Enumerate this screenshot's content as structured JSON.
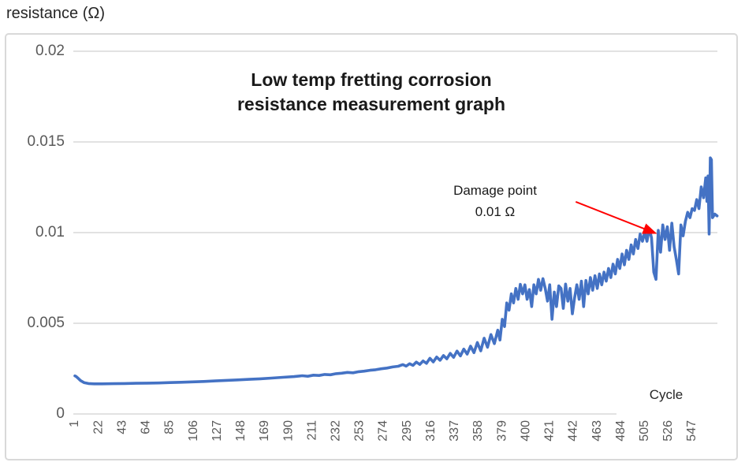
{
  "page": {
    "y_axis_title": "resistance (Ω)"
  },
  "chart_data": {
    "type": "line",
    "title": "Low temp fretting corrosion\nresistance measurement graph",
    "xlabel": "Cycle",
    "ylabel": "resistance (Ω)",
    "ylim": [
      0,
      0.02
    ],
    "y_ticks": [
      0,
      0.005,
      0.01,
      0.015,
      0.02
    ],
    "y_tick_labels": [
      "0",
      "0.005",
      "0.01",
      "0.015",
      "0.02"
    ],
    "x_ticks": [
      1,
      22,
      43,
      64,
      85,
      106,
      127,
      148,
      169,
      190,
      211,
      232,
      253,
      274,
      295,
      316,
      337,
      358,
      379,
      400,
      421,
      442,
      463,
      484,
      505,
      526,
      547
    ],
    "x_tick_labels": [
      "1",
      "22",
      "43",
      "64",
      "85",
      "106",
      "127",
      "148",
      "169",
      "190",
      "211",
      "232",
      "253",
      "274",
      "295",
      "316",
      "337",
      "358",
      "379",
      "400",
      "421",
      "442",
      "463",
      "484",
      "505",
      "526",
      "547"
    ],
    "grid": "horizontal",
    "legend": "none",
    "line_color": "#4472C4",
    "grid_color": "#d9d9d9",
    "tick_label_color": "#595959",
    "annotation": {
      "text": "Damage point\n0.01 Ω",
      "arrow_color": "#ff0000",
      "arrow_from_cycle": 444,
      "arrow_from_ohm": 0.0117,
      "arrow_to_cycle": 514,
      "arrow_to_ohm": 0.00998
    },
    "series": [
      {
        "name": "resistance",
        "points": [
          [
            1,
            0.0021
          ],
          [
            2,
            0.00207
          ],
          [
            4,
            0.00196
          ],
          [
            6,
            0.00184
          ],
          [
            9,
            0.00173
          ],
          [
            13,
            0.00168
          ],
          [
            18,
            0.00166
          ],
          [
            25,
            0.00166
          ],
          [
            35,
            0.00167
          ],
          [
            45,
            0.00168
          ],
          [
            55,
            0.00169
          ],
          [
            65,
            0.0017
          ],
          [
            75,
            0.00171
          ],
          [
            85,
            0.00173
          ],
          [
            95,
            0.00175
          ],
          [
            105,
            0.00177
          ],
          [
            115,
            0.00179
          ],
          [
            125,
            0.00182
          ],
          [
            135,
            0.00185
          ],
          [
            145,
            0.00188
          ],
          [
            155,
            0.00191
          ],
          [
            165,
            0.00194
          ],
          [
            175,
            0.00198
          ],
          [
            185,
            0.00202
          ],
          [
            195,
            0.00206
          ],
          [
            202,
            0.00211
          ],
          [
            207,
            0.00208
          ],
          [
            212,
            0.00214
          ],
          [
            217,
            0.00212
          ],
          [
            222,
            0.00218
          ],
          [
            227,
            0.00216
          ],
          [
            232,
            0.00222
          ],
          [
            237,
            0.00225
          ],
          [
            242,
            0.00229
          ],
          [
            247,
            0.00227
          ],
          [
            252,
            0.00233
          ],
          [
            257,
            0.00236
          ],
          [
            262,
            0.00241
          ],
          [
            267,
            0.00244
          ],
          [
            272,
            0.00249
          ],
          [
            277,
            0.00253
          ],
          [
            282,
            0.00259
          ],
          [
            287,
            0.00263
          ],
          [
            291,
            0.00272
          ],
          [
            294,
            0.00264
          ],
          [
            297,
            0.00277
          ],
          [
            300,
            0.00268
          ],
          [
            303,
            0.00286
          ],
          [
            306,
            0.00273
          ],
          [
            309,
            0.00292
          ],
          [
            312,
            0.00279
          ],
          [
            315,
            0.00307
          ],
          [
            318,
            0.00287
          ],
          [
            321,
            0.00314
          ],
          [
            324,
            0.00296
          ],
          [
            327,
            0.00322
          ],
          [
            330,
            0.00304
          ],
          [
            333,
            0.00334
          ],
          [
            336,
            0.00312
          ],
          [
            339,
            0.00347
          ],
          [
            342,
            0.0032
          ],
          [
            345,
            0.00358
          ],
          [
            348,
            0.0033
          ],
          [
            351,
            0.00374
          ],
          [
            354,
            0.00338
          ],
          [
            357,
            0.00394
          ],
          [
            360,
            0.00348
          ],
          [
            363,
            0.00418
          ],
          [
            366,
            0.00368
          ],
          [
            369,
            0.00438
          ],
          [
            372,
            0.00388
          ],
          [
            375,
            0.00462
          ],
          [
            377,
            0.00408
          ],
          [
            379,
            0.00522
          ],
          [
            381,
            0.00482
          ],
          [
            383,
            0.00612
          ],
          [
            385,
            0.00572
          ],
          [
            387,
            0.00662
          ],
          [
            389,
            0.00612
          ],
          [
            391,
            0.00692
          ],
          [
            393,
            0.00632
          ],
          [
            395,
            0.00715
          ],
          [
            397,
            0.00662
          ],
          [
            399,
            0.00712
          ],
          [
            401,
            0.00632
          ],
          [
            403,
            0.00686
          ],
          [
            405,
            0.00592
          ],
          [
            407,
            0.00712
          ],
          [
            409,
            0.00662
          ],
          [
            411,
            0.00742
          ],
          [
            413,
            0.00682
          ],
          [
            415,
            0.00746
          ],
          [
            417,
            0.00692
          ],
          [
            419,
            0.00622
          ],
          [
            421,
            0.00712
          ],
          [
            423,
            0.00522
          ],
          [
            425,
            0.00672
          ],
          [
            427,
            0.00592
          ],
          [
            429,
            0.00706
          ],
          [
            431,
            0.00692
          ],
          [
            433,
            0.00582
          ],
          [
            435,
            0.00716
          ],
          [
            437,
            0.00622
          ],
          [
            439,
            0.00692
          ],
          [
            441,
            0.00552
          ],
          [
            443,
            0.00642
          ],
          [
            445,
            0.00712
          ],
          [
            447,
            0.00632
          ],
          [
            449,
            0.00732
          ],
          [
            451,
            0.00592
          ],
          [
            453,
            0.00736
          ],
          [
            455,
            0.00662
          ],
          [
            457,
            0.00752
          ],
          [
            459,
            0.00682
          ],
          [
            461,
            0.00762
          ],
          [
            463,
            0.00692
          ],
          [
            465,
            0.00772
          ],
          [
            467,
            0.00712
          ],
          [
            469,
            0.00782
          ],
          [
            471,
            0.00732
          ],
          [
            473,
            0.00802
          ],
          [
            475,
            0.00752
          ],
          [
            477,
            0.00826
          ],
          [
            479,
            0.00772
          ],
          [
            481,
            0.00852
          ],
          [
            483,
            0.00802
          ],
          [
            485,
            0.00882
          ],
          [
            487,
            0.00822
          ],
          [
            489,
            0.00902
          ],
          [
            491,
            0.00852
          ],
          [
            493,
            0.00932
          ],
          [
            495,
            0.00882
          ],
          [
            497,
            0.00962
          ],
          [
            499,
            0.00912
          ],
          [
            501,
            0.00992
          ],
          [
            503,
            0.00952
          ],
          [
            505,
            0.01002
          ],
          [
            507,
            0.00952
          ],
          [
            509,
            0.01022
          ],
          [
            511,
            0.00972
          ],
          [
            513,
            0.00782
          ],
          [
            515,
            0.00742
          ],
          [
            517,
            0.01012
          ],
          [
            519,
            0.00892
          ],
          [
            521,
            0.01042
          ],
          [
            523,
            0.00962
          ],
          [
            525,
            0.01032
          ],
          [
            527,
            0.00902
          ],
          [
            529,
            0.01052
          ],
          [
            531,
            0.00922
          ],
          [
            533,
            0.00852
          ],
          [
            535,
            0.00772
          ],
          [
            537,
            0.01042
          ],
          [
            539,
            0.00982
          ],
          [
            541,
            0.01062
          ],
          [
            543,
            0.01112
          ],
          [
            545,
            0.01082
          ],
          [
            547,
            0.01132
          ],
          [
            549,
            0.01122
          ],
          [
            551,
            0.01182
          ],
          [
            553,
            0.01132
          ],
          [
            555,
            0.01252
          ],
          [
            557,
            0.01192
          ],
          [
            559,
            0.01302
          ],
          [
            560,
            0.01172
          ],
          [
            561,
            0.01312
          ],
          [
            562,
            0.00992
          ],
          [
            563,
            0.01412
          ],
          [
            564,
            0.01402
          ],
          [
            565,
            0.01082
          ],
          [
            567,
            0.01102
          ],
          [
            569,
            0.01092
          ]
        ]
      }
    ]
  }
}
